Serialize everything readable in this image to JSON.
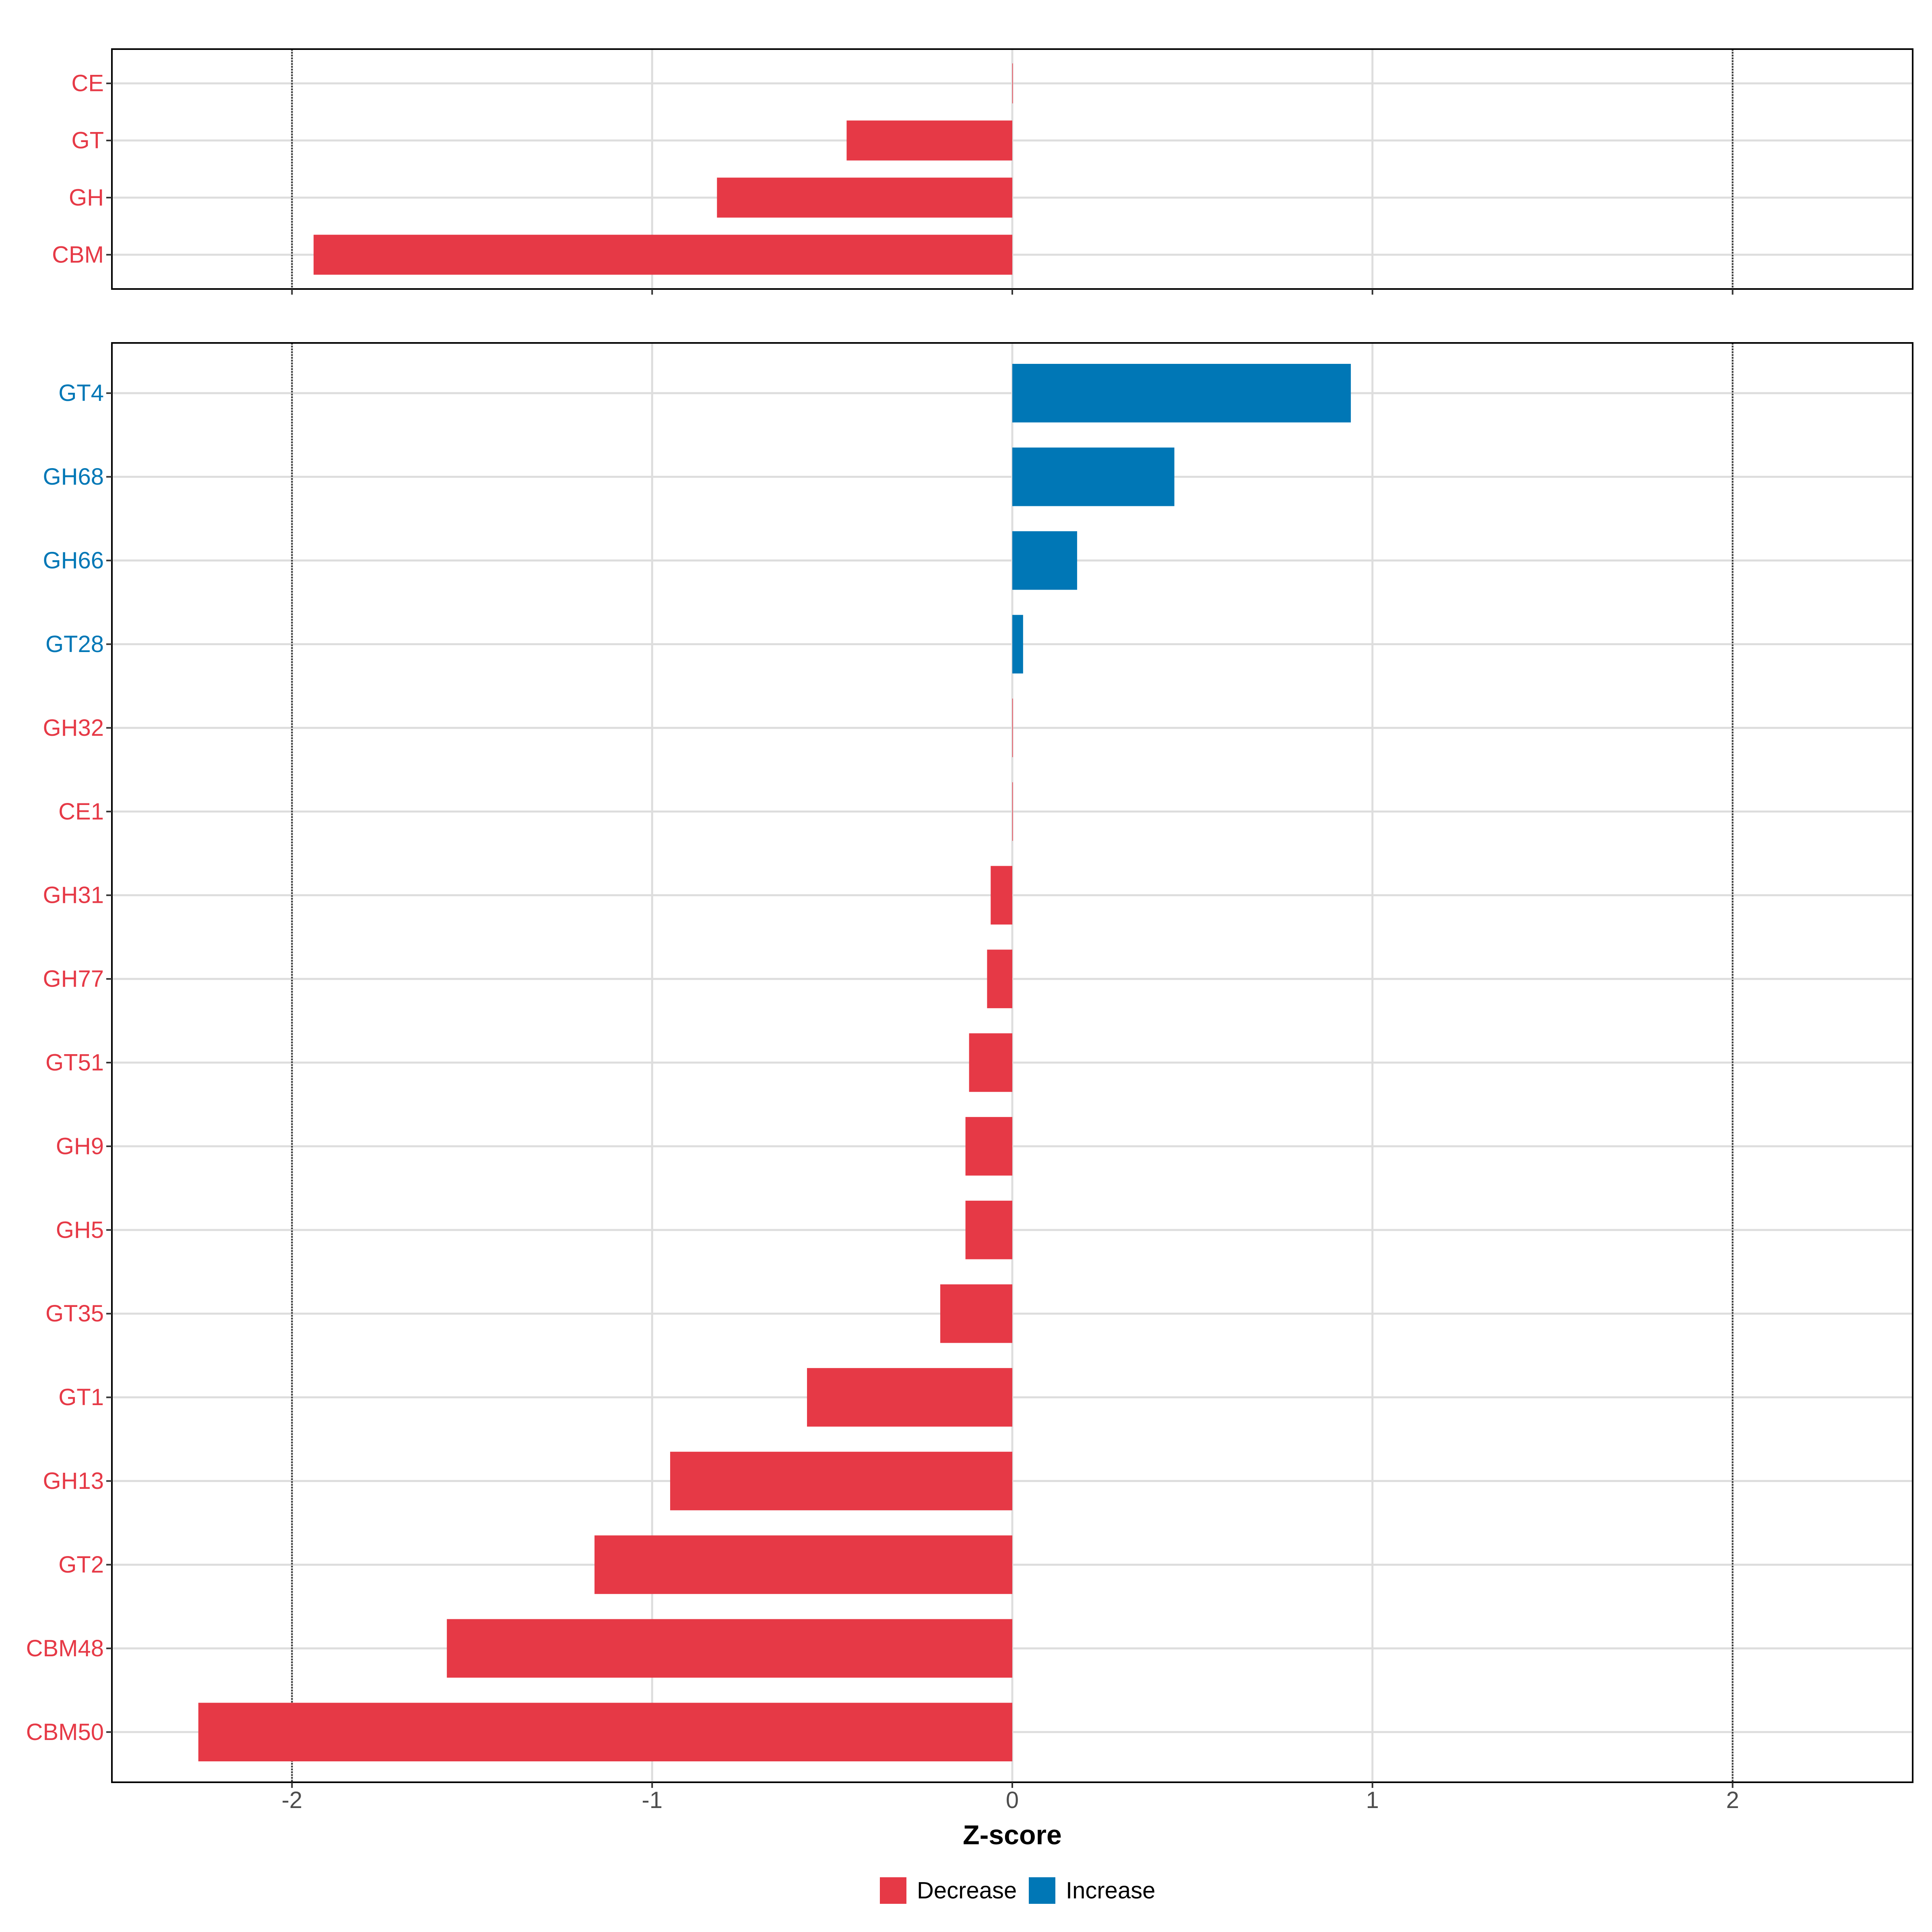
{
  "colors": {
    "decrease": "#E63946",
    "increase": "#0077B6",
    "grid": "#DDDDDD",
    "ref_line": "#333333",
    "panel_border": "#000000",
    "tick_text": "#4D4D4D"
  },
  "chart_data": {
    "type": "bar",
    "orientation": "horizontal",
    "xlabel": "Z-score",
    "xlim": [
      -2.5,
      2.5
    ],
    "x_ticks": [
      -2,
      -1,
      0,
      1,
      2
    ],
    "x_tick_labels": [
      "-2",
      "-1",
      "0",
      "1",
      "2"
    ],
    "reference_lines": [
      -2,
      2
    ],
    "legend": {
      "position": "bottom",
      "entries": [
        {
          "label": "Decrease",
          "group": "decrease"
        },
        {
          "label": "Increase",
          "group": "increase"
        }
      ]
    },
    "panels": [
      {
        "name": "class-level",
        "categories": [
          "CE",
          "GT",
          "GH",
          "CBM"
        ],
        "values": [
          0.0,
          -0.46,
          -0.82,
          -1.94
        ]
      },
      {
        "name": "family-level",
        "categories": [
          "GT4",
          "GH68",
          "GH66",
          "GT28",
          "GH32",
          "CE1",
          "GH31",
          "GH77",
          "GT51",
          "GH9",
          "GH5",
          "GT35",
          "GT1",
          "GH13",
          "GT2",
          "CBM48",
          "CBM50"
        ],
        "values": [
          0.94,
          0.45,
          0.18,
          0.03,
          0.0,
          0.0,
          -0.06,
          -0.07,
          -0.12,
          -0.13,
          -0.13,
          -0.2,
          -0.57,
          -0.95,
          -1.16,
          -1.57,
          -2.26
        ]
      }
    ]
  }
}
